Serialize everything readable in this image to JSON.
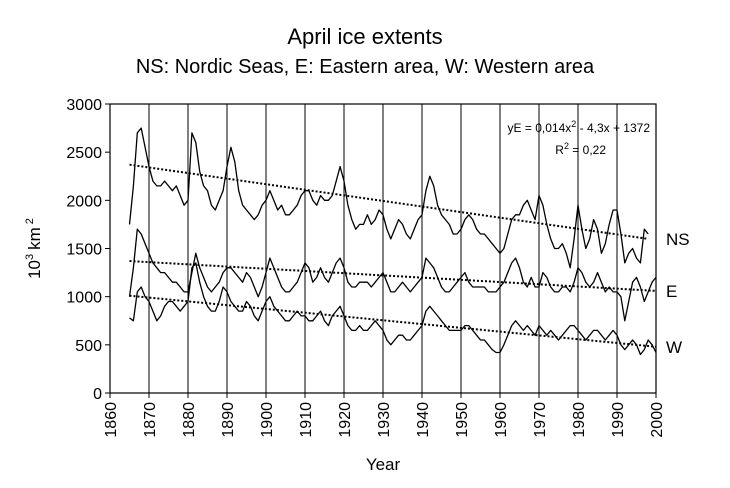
{
  "chart_data": {
    "type": "line",
    "title": "April ice extents",
    "subtitle": "NS: Nordic Seas, E: Eastern area, W: Western area",
    "xlabel": "Year",
    "ylabel_base": "10",
    "ylabel_exp1": "3",
    "ylabel_unit": "km",
    "ylabel_exp2": "2",
    "xlim": [
      1860,
      2000
    ],
    "ylim": [
      0,
      3000
    ],
    "xticks": [
      "1860",
      "1870",
      "1880",
      "1890",
      "1900",
      "1910",
      "1920",
      "1930",
      "1940",
      "1950",
      "1960",
      "1970",
      "1980",
      "1990",
      "2000"
    ],
    "yticks": [
      "0",
      "500",
      "1000",
      "1500",
      "2000",
      "2500",
      "3000"
    ],
    "grid": "vertical",
    "annotation": {
      "eq_prefix": "yE = 0,014x",
      "eq_exp": "2",
      "eq_rest": " - 4,3x + 1372",
      "r_prefix": "R",
      "r_exp": "2",
      "r_rest": " = 0,22"
    },
    "series": [
      {
        "name": "NS",
        "x": [
          1865,
          1866,
          1867,
          1868,
          1869,
          1870,
          1871,
          1872,
          1873,
          1874,
          1875,
          1876,
          1877,
          1878,
          1879,
          1880,
          1881,
          1882,
          1883,
          1884,
          1885,
          1886,
          1887,
          1888,
          1889,
          1890,
          1891,
          1892,
          1893,
          1894,
          1895,
          1896,
          1897,
          1898,
          1899,
          1900,
          1901,
          1902,
          1903,
          1904,
          1905,
          1906,
          1907,
          1908,
          1909,
          1910,
          1911,
          1912,
          1913,
          1914,
          1915,
          1916,
          1917,
          1918,
          1919,
          1920,
          1921,
          1922,
          1923,
          1924,
          1925,
          1926,
          1927,
          1928,
          1929,
          1930,
          1931,
          1932,
          1933,
          1934,
          1935,
          1936,
          1937,
          1938,
          1939,
          1940,
          1941,
          1942,
          1943,
          1944,
          1945,
          1946,
          1947,
          1948,
          1949,
          1950,
          1951,
          1952,
          1953,
          1954,
          1955,
          1956,
          1957,
          1958,
          1959,
          1960,
          1961,
          1962,
          1963,
          1964,
          1965,
          1966,
          1967,
          1968,
          1969,
          1970,
          1971,
          1972,
          1973,
          1974,
          1975,
          1976,
          1977,
          1978,
          1979,
          1980,
          1981,
          1982,
          1983,
          1984,
          1985,
          1986,
          1987,
          1988,
          1989,
          1990,
          1991,
          1992,
          1993,
          1994,
          1995,
          1996,
          1997,
          1998
        ],
        "values": [
          1750,
          2150,
          2700,
          2750,
          2550,
          2350,
          2200,
          2150,
          2150,
          2200,
          2150,
          2100,
          2150,
          2050,
          1950,
          2000,
          2700,
          2600,
          2300,
          2150,
          2100,
          1950,
          1900,
          2000,
          2100,
          2350,
          2550,
          2400,
          2100,
          1950,
          1900,
          1850,
          1800,
          1850,
          1950,
          2000,
          2100,
          2000,
          1900,
          1950,
          1850,
          1850,
          1900,
          1950,
          2050,
          2100,
          2100,
          2000,
          1950,
          2050,
          2000,
          2000,
          2050,
          2200,
          2350,
          2200,
          1950,
          1800,
          1700,
          1750,
          1750,
          1850,
          1750,
          1800,
          1900,
          1850,
          1700,
          1600,
          1700,
          1800,
          1750,
          1650,
          1600,
          1700,
          1800,
          1850,
          2100,
          2250,
          2150,
          1950,
          1850,
          1800,
          1750,
          1650,
          1650,
          1700,
          1800,
          1850,
          1800,
          1700,
          1650,
          1650,
          1600,
          1550,
          1500,
          1450,
          1500,
          1650,
          1800,
          1850,
          1850,
          1950,
          2000,
          1900,
          1800,
          2050,
          1950,
          1750,
          1600,
          1500,
          1500,
          1550,
          1450,
          1300,
          1600,
          1950,
          1700,
          1500,
          1600,
          1800,
          1700,
          1450,
          1550,
          1750,
          1900,
          1900,
          1650,
          1350,
          1450,
          1500,
          1400,
          1350,
          1700,
          1650
        ]
      },
      {
        "name": "E",
        "x": [
          1865,
          1866,
          1867,
          1868,
          1869,
          1870,
          1871,
          1872,
          1873,
          1874,
          1875,
          1876,
          1877,
          1878,
          1879,
          1880,
          1881,
          1882,
          1883,
          1884,
          1885,
          1886,
          1887,
          1888,
          1889,
          1890,
          1891,
          1892,
          1893,
          1894,
          1895,
          1896,
          1897,
          1898,
          1899,
          1900,
          1901,
          1902,
          1903,
          1904,
          1905,
          1906,
          1907,
          1908,
          1909,
          1910,
          1911,
          1912,
          1913,
          1914,
          1915,
          1916,
          1917,
          1918,
          1919,
          1920,
          1921,
          1922,
          1923,
          1924,
          1925,
          1926,
          1927,
          1928,
          1929,
          1930,
          1931,
          1932,
          1933,
          1934,
          1935,
          1936,
          1937,
          1938,
          1939,
          1940,
          1941,
          1942,
          1943,
          1944,
          1945,
          1946,
          1947,
          1948,
          1949,
          1950,
          1951,
          1952,
          1953,
          1954,
          1955,
          1956,
          1957,
          1958,
          1959,
          1960,
          1961,
          1962,
          1963,
          1964,
          1965,
          1966,
          1967,
          1968,
          1969,
          1970,
          1971,
          1972,
          1973,
          1974,
          1975,
          1976,
          1977,
          1978,
          1979,
          1980,
          1981,
          1982,
          1983,
          1984,
          1985,
          1986,
          1987,
          1988,
          1989,
          1990,
          1991,
          1992,
          1993,
          1994,
          1995,
          1996,
          1997,
          1998,
          1999,
          2000
        ],
        "values": [
          1000,
          1300,
          1700,
          1650,
          1550,
          1450,
          1350,
          1300,
          1250,
          1250,
          1200,
          1150,
          1150,
          1100,
          1050,
          1050,
          1250,
          1450,
          1300,
          1200,
          1100,
          1050,
          1100,
          1150,
          1250,
          1300,
          1300,
          1250,
          1200,
          1150,
          1250,
          1200,
          1100,
          1000,
          1100,
          1250,
          1400,
          1300,
          1200,
          1100,
          1050,
          1050,
          1100,
          1150,
          1250,
          1350,
          1300,
          1150,
          1200,
          1300,
          1200,
          1150,
          1250,
          1350,
          1400,
          1300,
          1150,
          1100,
          1100,
          1150,
          1150,
          1150,
          1100,
          1150,
          1200,
          1250,
          1150,
          1050,
          1050,
          1100,
          1150,
          1100,
          1050,
          1100,
          1150,
          1200,
          1400,
          1350,
          1300,
          1200,
          1100,
          1050,
          1050,
          1100,
          1150,
          1200,
          1250,
          1150,
          1100,
          1100,
          1100,
          1100,
          1050,
          1050,
          1050,
          1100,
          1150,
          1250,
          1350,
          1400,
          1300,
          1150,
          1100,
          1200,
          1100,
          1100,
          1250,
          1200,
          1100,
          1050,
          1050,
          1100,
          1100,
          1050,
          1150,
          1300,
          1250,
          1150,
          1100,
          1150,
          1250,
          1150,
          1050,
          1100,
          1050,
          1050,
          1000,
          750,
          950,
          1150,
          1200,
          1100,
          950,
          1050,
          1150,
          1200
        ]
      },
      {
        "name": "W",
        "x": [
          1865,
          1866,
          1867,
          1868,
          1869,
          1870,
          1871,
          1872,
          1873,
          1874,
          1875,
          1876,
          1877,
          1878,
          1879,
          1880,
          1881,
          1882,
          1883,
          1884,
          1885,
          1886,
          1887,
          1888,
          1889,
          1890,
          1891,
          1892,
          1893,
          1894,
          1895,
          1896,
          1897,
          1898,
          1899,
          1900,
          1901,
          1902,
          1903,
          1904,
          1905,
          1906,
          1907,
          1908,
          1909,
          1910,
          1911,
          1912,
          1913,
          1914,
          1915,
          1916,
          1917,
          1918,
          1919,
          1920,
          1921,
          1922,
          1923,
          1924,
          1925,
          1926,
          1927,
          1928,
          1929,
          1930,
          1931,
          1932,
          1933,
          1934,
          1935,
          1936,
          1937,
          1938,
          1939,
          1940,
          1941,
          1942,
          1943,
          1944,
          1945,
          1946,
          1947,
          1948,
          1949,
          1950,
          1951,
          1952,
          1953,
          1954,
          1955,
          1956,
          1957,
          1958,
          1959,
          1960,
          1961,
          1962,
          1963,
          1964,
          1965,
          1966,
          1967,
          1968,
          1969,
          1970,
          1971,
          1972,
          1973,
          1974,
          1975,
          1976,
          1977,
          1978,
          1979,
          1980,
          1981,
          1982,
          1983,
          1984,
          1985,
          1986,
          1987,
          1988,
          1989,
          1990,
          1991,
          1992,
          1993,
          1994,
          1995,
          1996,
          1997,
          1998,
          1999,
          2000
        ],
        "values": [
          780,
          750,
          1050,
          1100,
          1000,
          950,
          850,
          750,
          800,
          900,
          950,
          950,
          900,
          850,
          900,
          950,
          1300,
          1350,
          1150,
          1000,
          900,
          850,
          850,
          950,
          1100,
          1050,
          950,
          900,
          850,
          850,
          950,
          900,
          800,
          750,
          850,
          950,
          1000,
          900,
          850,
          800,
          750,
          750,
          800,
          850,
          800,
          800,
          750,
          750,
          800,
          850,
          750,
          700,
          800,
          850,
          900,
          800,
          700,
          650,
          650,
          700,
          650,
          650,
          700,
          750,
          700,
          650,
          550,
          500,
          550,
          600,
          600,
          550,
          550,
          600,
          650,
          700,
          850,
          900,
          850,
          800,
          750,
          700,
          650,
          650,
          650,
          650,
          700,
          700,
          650,
          600,
          550,
          550,
          500,
          450,
          420,
          420,
          500,
          600,
          700,
          750,
          700,
          650,
          700,
          650,
          600,
          700,
          650,
          600,
          650,
          600,
          550,
          600,
          650,
          700,
          700,
          650,
          600,
          550,
          600,
          650,
          650,
          600,
          550,
          600,
          650,
          600,
          500,
          450,
          500,
          550,
          500,
          400,
          450,
          550,
          500,
          420
        ]
      }
    ],
    "trend_lines": [
      {
        "series": "NS",
        "x": [
          1865,
          1998
        ],
        "values": [
          2370,
          1600
        ]
      },
      {
        "series": "E",
        "x": [
          1865,
          2000
        ],
        "values": [
          1370,
          1060
        ]
      },
      {
        "series": "W",
        "x": [
          1865,
          2000
        ],
        "values": [
          1010,
          480
        ]
      }
    ]
  }
}
